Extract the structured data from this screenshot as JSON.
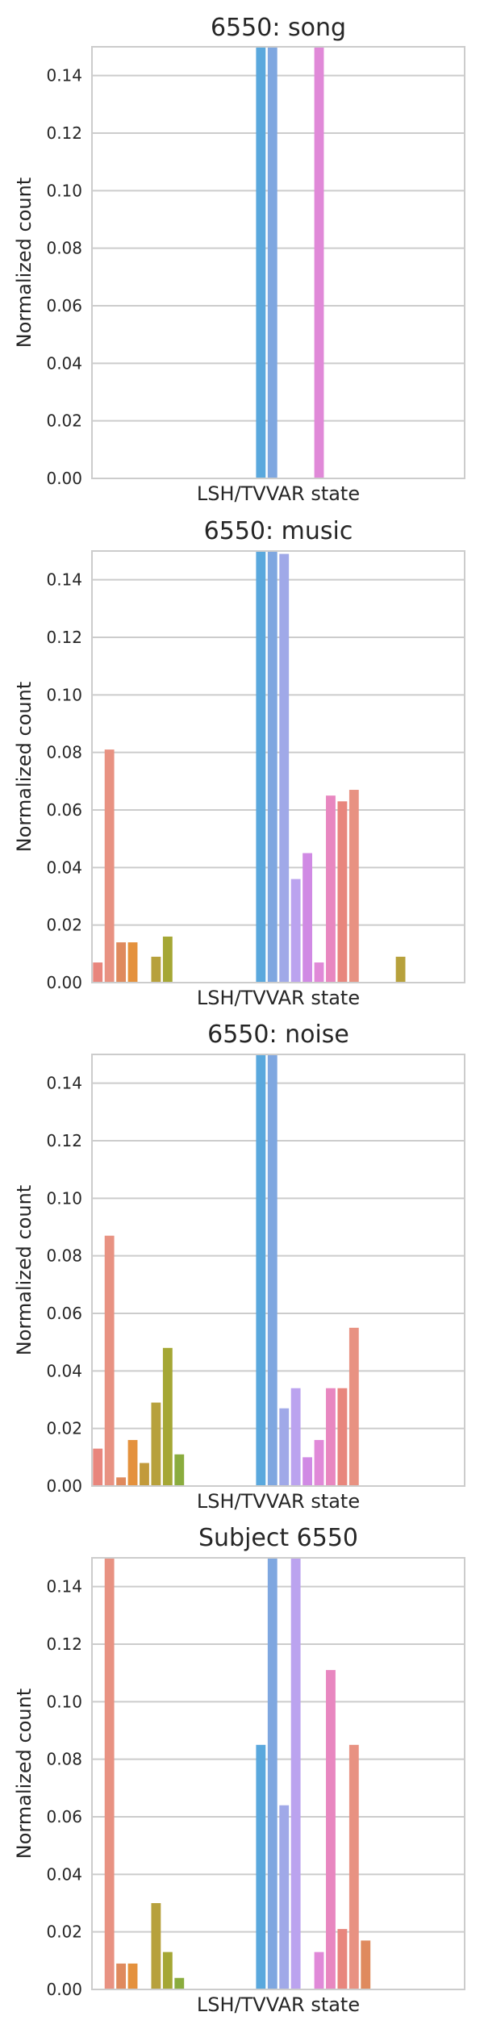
{
  "palette": [
    "#e8867d",
    "#e89282",
    "#df8a5e",
    "#e4913d",
    "#c29a3b",
    "#b7a13c",
    "#a5a735",
    "#8aac3e",
    "#5fb352",
    "#49b37a",
    "#47b099",
    "#49aeae",
    "#46acbe",
    "#4ba4d0",
    "#5aa8dd",
    "#7fa7e0",
    "#a0a9e8",
    "#bba3ef",
    "#d08ae4",
    "#e089d8",
    "#e887c0"
  ],
  "chart_data": [
    {
      "type": "bar",
      "title": "6550: song",
      "xlabel": "LSH/TVVAR state",
      "ylabel": "Normalized count",
      "ylim": [
        0,
        0.15
      ],
      "yticks": [
        "0.00",
        "0.02",
        "0.04",
        "0.06",
        "0.08",
        "0.10",
        "0.12",
        "0.14"
      ],
      "grid": true,
      "values": [
        0,
        0,
        0,
        0,
        0,
        0,
        0,
        0,
        0,
        0,
        0,
        0,
        0,
        0,
        0.15,
        0.15,
        0,
        0,
        0,
        0.15,
        0,
        0,
        0,
        0,
        0,
        0,
        0,
        0,
        0,
        0,
        0,
        0
      ]
    },
    {
      "type": "bar",
      "title": "6550: music",
      "xlabel": "LSH/TVVAR state",
      "ylabel": "Normalized count",
      "ylim": [
        0,
        0.15
      ],
      "yticks": [
        "0.00",
        "0.02",
        "0.04",
        "0.06",
        "0.08",
        "0.10",
        "0.12",
        "0.14"
      ],
      "grid": true,
      "values": [
        0.007,
        0.081,
        0.014,
        0.014,
        0,
        0.009,
        0.016,
        0,
        0,
        0,
        0,
        0,
        0,
        0,
        0.15,
        0.15,
        0.149,
        0.036,
        0.045,
        0.007,
        0.065,
        0.063,
        0.067,
        0,
        0,
        0,
        0.009,
        0,
        0,
        0,
        0,
        0
      ]
    },
    {
      "type": "bar",
      "title": "6550: noise",
      "xlabel": "LSH/TVVAR state",
      "ylabel": "Normalized count",
      "ylim": [
        0,
        0.15
      ],
      "yticks": [
        "0.00",
        "0.02",
        "0.04",
        "0.06",
        "0.08",
        "0.10",
        "0.12",
        "0.14"
      ],
      "grid": true,
      "values": [
        0.013,
        0.087,
        0.003,
        0.016,
        0.008,
        0.029,
        0.048,
        0.011,
        0,
        0,
        0,
        0,
        0,
        0,
        0.15,
        0.15,
        0.027,
        0.034,
        0.01,
        0.016,
        0.034,
        0.034,
        0.055,
        0,
        0,
        0,
        0,
        0,
        0,
        0,
        0,
        0
      ]
    },
    {
      "type": "bar",
      "title": "Subject 6550",
      "xlabel": "LSH/TVVAR state",
      "ylabel": "Normalized count",
      "ylim": [
        0,
        0.15
      ],
      "yticks": [
        "0.00",
        "0.02",
        "0.04",
        "0.06",
        "0.08",
        "0.10",
        "0.12",
        "0.14"
      ],
      "grid": true,
      "values": [
        0,
        0.15,
        0.009,
        0.009,
        0,
        0.03,
        0.013,
        0.004,
        0,
        0,
        0,
        0,
        0,
        0,
        0.085,
        0.15,
        0.064,
        0.15,
        0,
        0.013,
        0.111,
        0.021,
        0.085,
        0.017,
        0,
        0,
        0,
        0,
        0,
        0,
        0,
        0
      ]
    }
  ]
}
